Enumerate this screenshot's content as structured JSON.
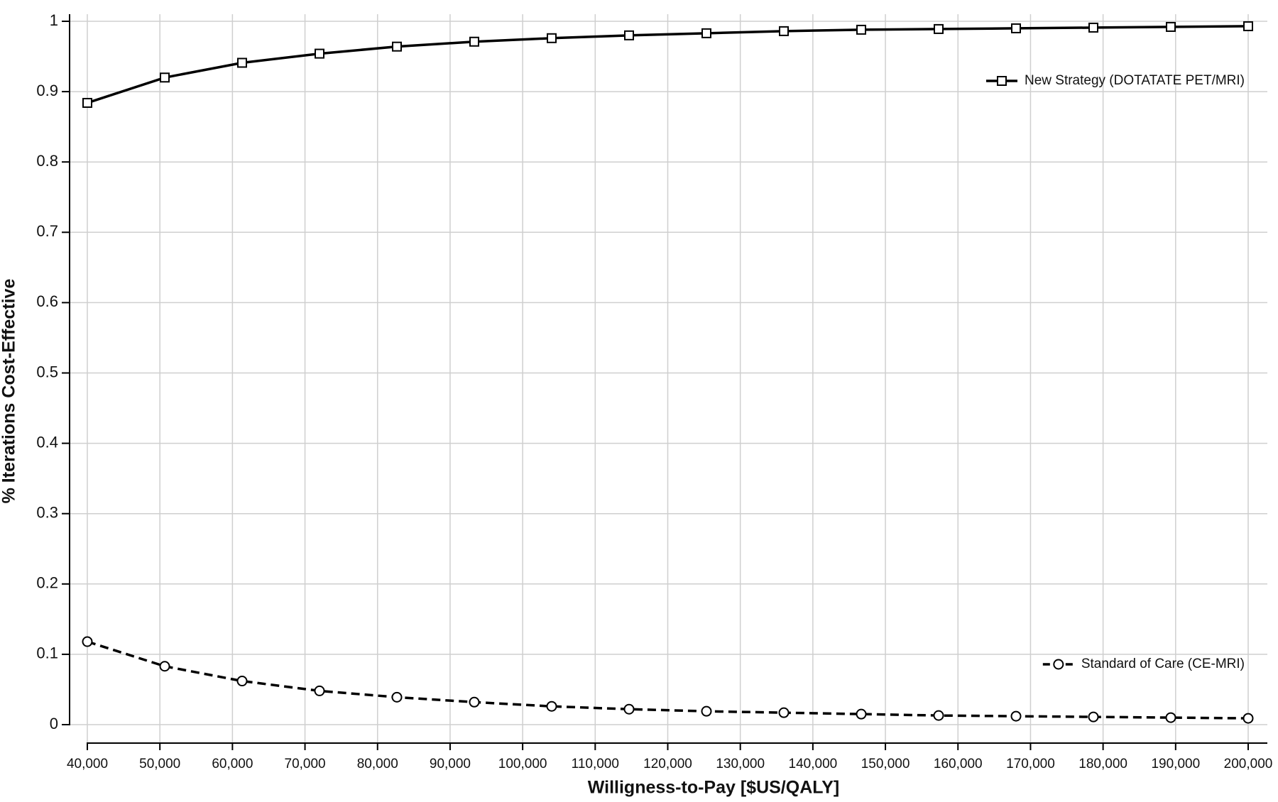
{
  "chart_data": {
    "type": "line",
    "xlabel": "Willigness-to-Pay [$US/QALY]",
    "ylabel": "% Iterations Cost-Effective",
    "x": [
      40000,
      50667,
      61333,
      72000,
      82667,
      93333,
      104000,
      114667,
      125333,
      136000,
      146667,
      157333,
      168000,
      178667,
      189333,
      200000
    ],
    "series": [
      {
        "name": "New Strategy (DOTATATE PET/MRI)",
        "color": "#000000",
        "line_style": "solid",
        "marker": "square",
        "values": [
          0.884,
          0.92,
          0.941,
          0.954,
          0.964,
          0.971,
          0.976,
          0.98,
          0.983,
          0.986,
          0.988,
          0.989,
          0.99,
          0.991,
          0.992,
          0.993
        ]
      },
      {
        "name": "Standard of Care (CE-MRI)",
        "color": "#000000",
        "line_style": "dashed",
        "marker": "circle",
        "values": [
          0.118,
          0.083,
          0.062,
          0.048,
          0.039,
          0.032,
          0.026,
          0.022,
          0.019,
          0.017,
          0.015,
          0.013,
          0.012,
          0.011,
          0.01,
          0.009
        ]
      }
    ],
    "xlim": [
      40000,
      200000
    ],
    "xticks": [
      {
        "value": 40000,
        "label": "40,000"
      },
      {
        "value": 50000,
        "label": "50,000"
      },
      {
        "value": 60000,
        "label": "60,000"
      },
      {
        "value": 70000,
        "label": "70,000"
      },
      {
        "value": 80000,
        "label": "80,000"
      },
      {
        "value": 90000,
        "label": "90,000"
      },
      {
        "value": 100000,
        "label": "100,000"
      },
      {
        "value": 110000,
        "label": "110,000"
      },
      {
        "value": 120000,
        "label": "120,000"
      },
      {
        "value": 130000,
        "label": "130,000"
      },
      {
        "value": 140000,
        "label": "140,000"
      },
      {
        "value": 150000,
        "label": "150,000"
      },
      {
        "value": 160000,
        "label": "160,000"
      },
      {
        "value": 170000,
        "label": "170,000"
      },
      {
        "value": 180000,
        "label": "180,000"
      },
      {
        "value": 190000,
        "label": "190,000"
      },
      {
        "value": 200000,
        "label": "200,000"
      }
    ],
    "ylim": [
      0,
      1
    ],
    "yticks": [
      0,
      0.1,
      0.2,
      0.3,
      0.4,
      0.5,
      0.6,
      0.7,
      0.8,
      0.9,
      1
    ],
    "grid": true
  }
}
